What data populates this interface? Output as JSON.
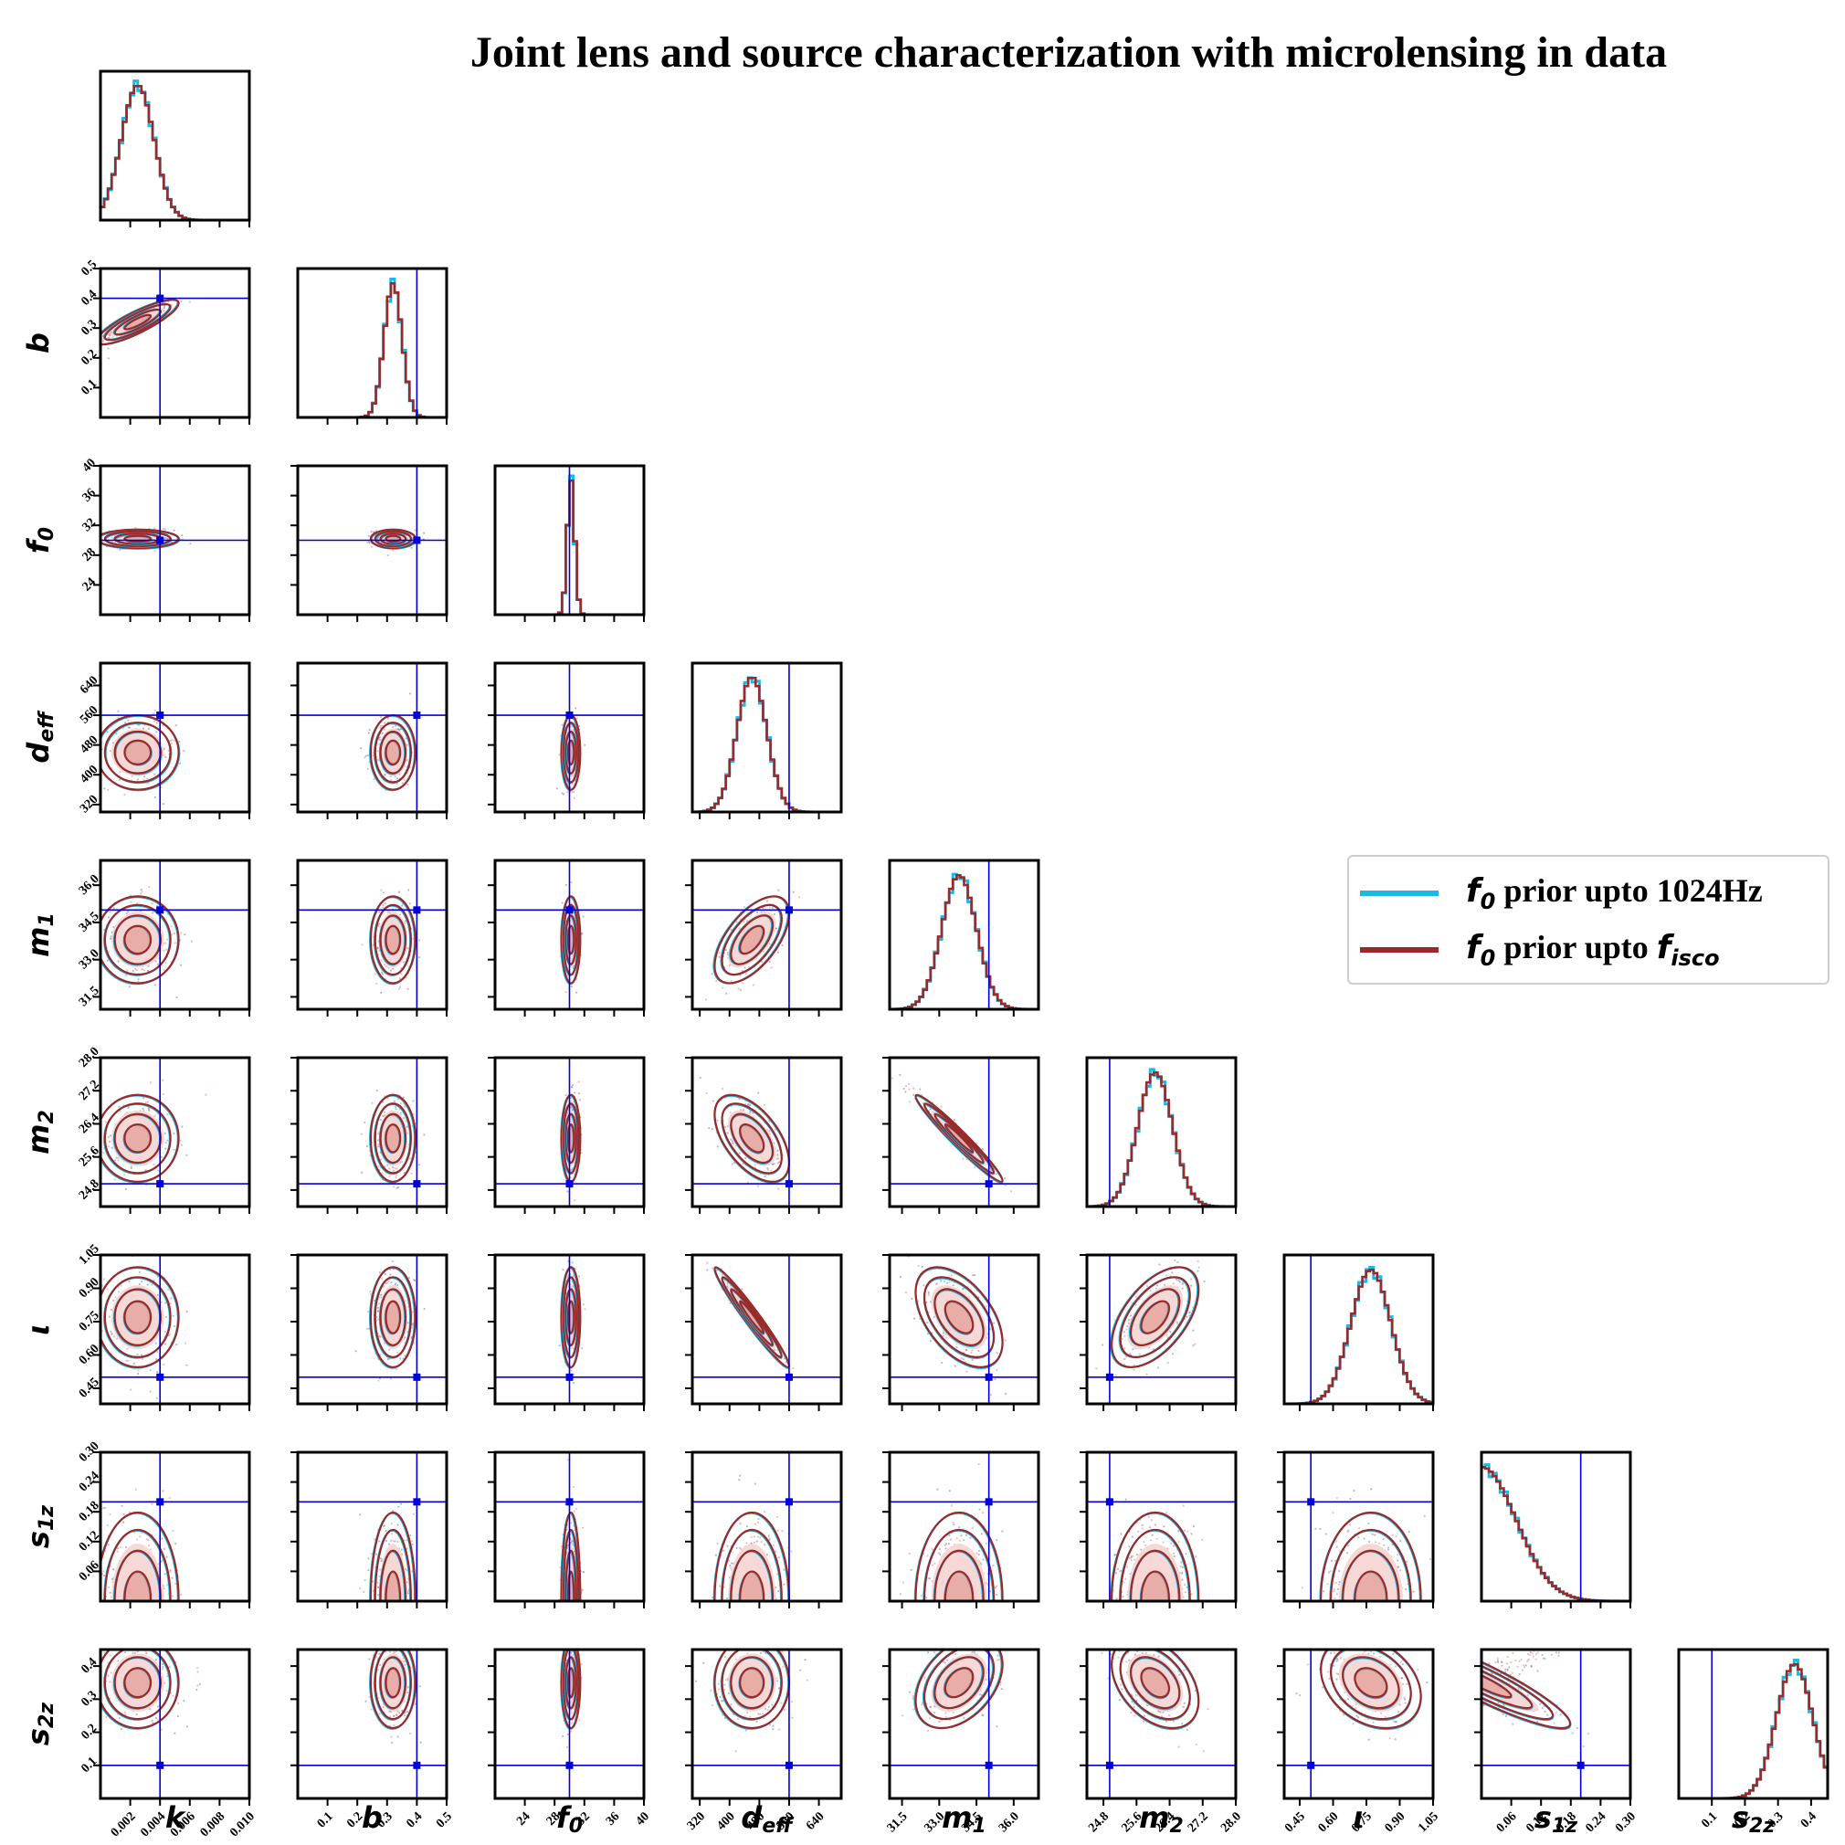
{
  "title": "Joint lens and source characterization with microlensing in data",
  "legend": {
    "entries": [
      {
        "symbol": "f",
        "subscript": "0",
        "text": " prior upto 1024Hz",
        "suffix_symbol": "",
        "suffix_subscript": "",
        "color": "#1bb8e8"
      },
      {
        "symbol": "f",
        "subscript": "0",
        "text": " prior upto ",
        "suffix_symbol": "f",
        "suffix_subscript": "isco",
        "color": "#9a2a2a"
      }
    ]
  },
  "chart_data": {
    "type": "corner",
    "parameters": [
      {
        "name": "k",
        "label": "k",
        "sub": "",
        "range": [
          0,
          0.01
        ],
        "truth": 0.004,
        "mean": 0.0025,
        "sd": 0.0011,
        "ticks": [
          "0.002",
          "0.004",
          "0.006",
          "0.008",
          "0.010"
        ],
        "tick_values": [
          0.002,
          0.004,
          0.006,
          0.008,
          0.01
        ]
      },
      {
        "name": "b",
        "label": "b",
        "sub": "",
        "range": [
          0,
          0.5
        ],
        "truth": 0.4,
        "mean": 0.32,
        "sd": 0.03,
        "ticks": [
          "0.1",
          "0.2",
          "0.3",
          "0.4",
          "0.5"
        ],
        "tick_values": [
          0.1,
          0.2,
          0.3,
          0.4,
          0.5
        ]
      },
      {
        "name": "f0",
        "label": "f",
        "sub": "0",
        "range": [
          20,
          40
        ],
        "truth": 30,
        "mean": 30.2,
        "sd": 0.5,
        "ticks": [
          "24",
          "28",
          "32",
          "36",
          "40"
        ],
        "tick_values": [
          24,
          28,
          32,
          36,
          40
        ]
      },
      {
        "name": "deff",
        "label": "d",
        "sub": "eff",
        "range": [
          300,
          700
        ],
        "truth": 560,
        "mean": 460,
        "sd": 40,
        "ticks": [
          "320",
          "400",
          "480",
          "560",
          "640"
        ],
        "tick_values": [
          320,
          400,
          480,
          560,
          640
        ]
      },
      {
        "name": "m1",
        "label": "m",
        "sub": "1",
        "range": [
          31,
          37
        ],
        "truth": 35.0,
        "mean": 33.8,
        "sd": 0.7,
        "ticks": [
          "31.5",
          "33.0",
          "34.5",
          "36.0"
        ],
        "tick_values": [
          31.5,
          33.0,
          34.5,
          36.0
        ]
      },
      {
        "name": "m2",
        "label": "m",
        "sub": "2",
        "range": [
          24.4,
          28.0
        ],
        "truth": 24.95,
        "mean": 26.05,
        "sd": 0.42,
        "ticks": [
          "24.8",
          "25.6",
          "26.4",
          "27.2",
          "28.0"
        ],
        "tick_values": [
          24.8,
          25.6,
          26.4,
          27.2,
          28.0
        ]
      },
      {
        "name": "iota",
        "label": "ι",
        "sub": "",
        "range": [
          0.38,
          1.05
        ],
        "truth": 0.5,
        "mean": 0.77,
        "sd": 0.09,
        "ticks": [
          "0.45",
          "0.60",
          "0.75",
          "0.90",
          "1.05"
        ],
        "tick_values": [
          0.45,
          0.6,
          0.75,
          0.9,
          1.05
        ]
      },
      {
        "name": "s1z",
        "label": "s",
        "sub": "1z",
        "range": [
          0,
          0.3
        ],
        "truth": 0.2,
        "mean": 0.0,
        "sd": 0.07,
        "ticks": [
          "0.06",
          "0.12",
          "0.18",
          "0.24",
          "0.30"
        ],
        "tick_values": [
          0.06,
          0.12,
          0.18,
          0.24,
          0.3
        ]
      },
      {
        "name": "s2z",
        "label": "s",
        "sub": "2z",
        "range": [
          0,
          0.45
        ],
        "truth": 0.1,
        "mean": 0.35,
        "sd": 0.055,
        "ticks": [
          "0.1",
          "0.2",
          "0.3",
          "0.4"
        ],
        "tick_values": [
          0.1,
          0.2,
          0.3,
          0.4
        ]
      }
    ],
    "correlations": [
      {
        "i": 1,
        "j": 0,
        "rho": 0.85
      },
      {
        "i": 4,
        "j": 3,
        "rho": 0.6
      },
      {
        "i": 5,
        "j": 3,
        "rho": -0.55
      },
      {
        "i": 5,
        "j": 4,
        "rho": -0.97
      },
      {
        "i": 6,
        "j": 3,
        "rho": -0.97
      },
      {
        "i": 6,
        "j": 4,
        "rho": -0.5
      },
      {
        "i": 6,
        "j": 5,
        "rho": 0.55
      },
      {
        "i": 8,
        "j": 4,
        "rho": 0.4
      },
      {
        "i": 8,
        "j": 5,
        "rho": -0.4
      },
      {
        "i": 8,
        "j": 6,
        "rho": -0.3
      },
      {
        "i": 8,
        "j": 7,
        "rho": -0.9
      }
    ],
    "series": [
      {
        "name": "f0 prior upto 1024Hz",
        "color": "#1bb8e8"
      },
      {
        "name": "f0 prior upto fisco",
        "color": "#9a2a2a"
      }
    ],
    "truth_color": "#0000dd",
    "grid": false
  }
}
